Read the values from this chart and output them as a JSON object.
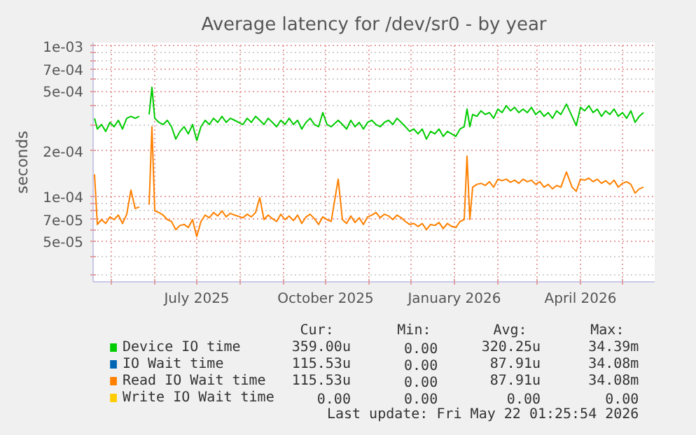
{
  "chart_data": {
    "type": "line",
    "title": "Average latency for /dev/sr0 - by year",
    "ylabel": "seconds",
    "log": "y",
    "grid": true,
    "legend": "bottom",
    "xlim": [
      "2025-04-18",
      "2026-05-24"
    ],
    "xticks": [
      {
        "value": "2025-05-01",
        "label": null
      },
      {
        "value": "2025-06-01",
        "label": null
      },
      {
        "value": "2025-07-01",
        "label": "July 2025"
      },
      {
        "value": "2025-08-01",
        "label": null
      },
      {
        "value": "2025-09-01",
        "label": null
      },
      {
        "value": "2025-10-01",
        "label": "October 2025"
      },
      {
        "value": "2025-11-01",
        "label": null
      },
      {
        "value": "2025-12-01",
        "label": null
      },
      {
        "value": "2026-01-01",
        "label": "January 2026"
      },
      {
        "value": "2026-02-01",
        "label": null
      },
      {
        "value": "2026-03-01",
        "label": null
      },
      {
        "value": "2026-04-01",
        "label": "April 2026"
      },
      {
        "value": "2026-05-01",
        "label": null
      }
    ],
    "ylim": [
      2.7e-05,
      0.00105
    ],
    "yticks": [
      {
        "value": 3e-05,
        "label": null
      },
      {
        "value": 4e-05,
        "label": null
      },
      {
        "value": 5e-05,
        "label": "5e-05"
      },
      {
        "value": 6e-05,
        "label": null
      },
      {
        "value": 7e-05,
        "label": "7e-05"
      },
      {
        "value": 8e-05,
        "label": null
      },
      {
        "value": 9e-05,
        "label": null
      },
      {
        "value": 0.0001,
        "label": "1e-04"
      },
      {
        "value": 0.0002,
        "label": "2e-04"
      },
      {
        "value": 0.0003,
        "label": null
      },
      {
        "value": 0.0004,
        "label": null
      },
      {
        "value": 0.0005,
        "label": "5e-04"
      },
      {
        "value": 0.0006,
        "label": null
      },
      {
        "value": 0.0007,
        "label": "7e-04"
      },
      {
        "value": 0.0008,
        "label": null
      },
      {
        "value": 0.0009,
        "label": null
      },
      {
        "value": 0.001,
        "label": "1e-03"
      }
    ],
    "x": [
      "2025-04-19",
      "2025-04-21",
      "2025-04-24",
      "2025-04-27",
      "2025-04-30",
      "2025-05-03",
      "2025-05-06",
      "2025-05-09",
      "2025-05-12",
      "2025-05-15",
      "2025-05-18",
      "2025-05-21",
      "2025-05-24",
      "2025-05-28",
      "2025-05-30",
      "2025-06-01",
      "2025-06-04",
      "2025-06-07",
      "2025-06-10",
      "2025-06-13",
      "2025-06-16",
      "2025-06-19",
      "2025-06-22",
      "2025-06-25",
      "2025-06-28",
      "2025-07-01",
      "2025-07-04",
      "2025-07-07",
      "2025-07-10",
      "2025-07-13",
      "2025-07-16",
      "2025-07-19",
      "2025-07-22",
      "2025-07-25",
      "2025-07-28",
      "2025-08-03",
      "2025-08-06",
      "2025-08-09",
      "2025-08-12",
      "2025-08-15",
      "2025-08-18",
      "2025-08-21",
      "2025-08-24",
      "2025-08-27",
      "2025-08-30",
      "2025-09-02",
      "2025-09-05",
      "2025-09-08",
      "2025-09-11",
      "2025-09-14",
      "2025-09-17",
      "2025-09-20",
      "2025-09-23",
      "2025-09-26",
      "2025-09-29",
      "2025-10-02",
      "2025-10-05",
      "2025-10-10",
      "2025-10-13",
      "2025-10-16",
      "2025-10-19",
      "2025-10-22",
      "2025-10-25",
      "2025-10-28",
      "2025-10-31",
      "2025-11-03",
      "2025-11-06",
      "2025-11-09",
      "2025-11-12",
      "2025-11-15",
      "2025-11-18",
      "2025-11-21",
      "2025-11-24",
      "2025-11-27",
      "2025-11-30",
      "2025-12-03",
      "2025-12-06",
      "2025-12-09",
      "2025-12-12",
      "2025-12-15",
      "2025-12-18",
      "2025-12-21",
      "2025-12-24",
      "2025-12-27",
      "2025-12-30",
      "2026-01-02",
      "2026-01-05",
      "2026-01-08",
      "2026-01-10",
      "2026-01-12",
      "2026-01-14",
      "2026-01-17",
      "2026-01-20",
      "2026-01-23",
      "2026-01-26",
      "2026-01-29",
      "2026-02-01",
      "2026-02-04",
      "2026-02-07",
      "2026-02-10",
      "2026-02-13",
      "2026-02-16",
      "2026-02-19",
      "2026-02-22",
      "2026-02-25",
      "2026-02-28",
      "2026-03-03",
      "2026-03-06",
      "2026-03-09",
      "2026-03-12",
      "2026-03-15",
      "2026-03-18",
      "2026-03-22",
      "2026-03-26",
      "2026-03-29",
      "2026-04-01",
      "2026-04-04",
      "2026-04-07",
      "2026-04-10",
      "2026-04-13",
      "2026-04-16",
      "2026-04-19",
      "2026-04-22",
      "2026-04-25",
      "2026-04-28",
      "2026-05-01",
      "2026-05-04",
      "2026-05-07",
      "2026-05-10",
      "2026-05-13",
      "2026-05-16"
    ],
    "series": [
      {
        "name": "Device IO time",
        "color": "#00cc00",
        "values": [
          0.00033,
          0.00028,
          0.0003,
          0.00027,
          0.00031,
          0.00029,
          0.00032,
          0.00028,
          0.00033,
          0.00034,
          0.00033,
          0.00034,
          null,
          0.00035,
          0.00053,
          0.00033,
          0.00031,
          0.0003,
          0.00032,
          0.00029,
          0.00024,
          0.00027,
          0.00029,
          0.00026,
          0.0003,
          0.000235,
          0.00029,
          0.00032,
          0.0003,
          0.00033,
          0.00031,
          0.00034,
          0.00031,
          0.00033,
          0.00032,
          0.0003,
          0.00033,
          0.00031,
          0.00034,
          0.00032,
          0.0003,
          0.00033,
          0.00031,
          0.00029,
          0.00032,
          0.0003,
          0.00033,
          0.0003,
          0.00032,
          0.00028,
          0.00031,
          0.00033,
          0.0003,
          0.00029,
          0.00036,
          0.0003,
          0.00029,
          0.00032,
          0.0003,
          0.00028,
          0.00032,
          0.00029,
          0.00031,
          0.00028,
          0.00031,
          0.00032,
          0.0003,
          0.00029,
          0.00031,
          0.00032,
          0.0003,
          0.00033,
          0.00031,
          0.00029,
          0.00027,
          0.00028,
          0.00026,
          0.00028,
          0.00024,
          0.00027,
          0.00026,
          0.00028,
          0.00025,
          0.00027,
          0.00026,
          0.00025,
          0.00028,
          0.00029,
          0.00038,
          0.00029,
          0.00035,
          0.00034,
          0.00037,
          0.00035,
          0.00036,
          0.00033,
          0.00038,
          0.00036,
          0.0004,
          0.00037,
          0.00039,
          0.00036,
          0.00038,
          0.00036,
          0.00039,
          0.00035,
          0.00037,
          0.00034,
          0.00036,
          0.00033,
          0.00037,
          0.00035,
          0.00041,
          0.00034,
          0.000295,
          0.00039,
          0.00037,
          0.0004,
          0.00036,
          0.00038,
          0.00034,
          0.00037,
          0.00035,
          0.00038,
          0.00034,
          0.00036,
          0.00033,
          0.00037,
          0.00031,
          0.00034,
          0.00036
        ]
      },
      {
        "name": "IO Wait time",
        "color": "#0066b3",
        "values": [
          null,
          null,
          null,
          null,
          null,
          null,
          null,
          null,
          null,
          null,
          null,
          null,
          null,
          null,
          null,
          null,
          null,
          null,
          null,
          null,
          null,
          null,
          null,
          null,
          null,
          null,
          null,
          null,
          null,
          null,
          null,
          null,
          null,
          null,
          null,
          null,
          null,
          null,
          null,
          null,
          null,
          null,
          null,
          null,
          null,
          null,
          null,
          null,
          null,
          null,
          null,
          null,
          null,
          null,
          null,
          null,
          null,
          null,
          null,
          null,
          null,
          null,
          null,
          null,
          null,
          null,
          null,
          null,
          null,
          null,
          null,
          null,
          null,
          null,
          null,
          null,
          null,
          null,
          null,
          null,
          null,
          null,
          null,
          null,
          null,
          null,
          null,
          null,
          null,
          null,
          null,
          null,
          null,
          null,
          null,
          null,
          null,
          null,
          null,
          null,
          null,
          null,
          null,
          null,
          null,
          null,
          null,
          null,
          null,
          null,
          null,
          null,
          null,
          null,
          null,
          null,
          null,
          null,
          null,
          null,
          null,
          null,
          null,
          null,
          null,
          null,
          null,
          null,
          null,
          null,
          null
        ]
      },
      {
        "name": "Read IO Wait time",
        "color": "#ff8000",
        "values": [
          0.00014,
          6.5e-05,
          7e-05,
          6.6e-05,
          7.3e-05,
          7e-05,
          7.5e-05,
          6.6e-05,
          7.6e-05,
          0.00011,
          8.3e-05,
          8.5e-05,
          null,
          8.8e-05,
          0.00029,
          8e-05,
          7.8e-05,
          7.5e-05,
          7e-05,
          6.8e-05,
          6e-05,
          6.4e-05,
          6.5e-05,
          6.2e-05,
          7e-05,
          5.4e-05,
          6.8e-05,
          7.5e-05,
          7.2e-05,
          7.8e-05,
          7.4e-05,
          8e-05,
          7.3e-05,
          7.7e-05,
          7.5e-05,
          7.2e-05,
          7.6e-05,
          7.3e-05,
          7.8e-05,
          9.8e-05,
          7e-05,
          7.5e-05,
          7.1e-05,
          6.8e-05,
          7.6e-05,
          7e-05,
          7.4e-05,
          6.9e-05,
          7.5e-05,
          6.6e-05,
          7.3e-05,
          7.6e-05,
          7.1e-05,
          6.5e-05,
          7.3e-05,
          7e-05,
          6.8e-05,
          0.00013,
          7e-05,
          6.6e-05,
          7.4e-05,
          6.7e-05,
          7.2e-05,
          6.5e-05,
          7.3e-05,
          7.5e-05,
          7.8e-05,
          7.2e-05,
          7.6e-05,
          7.4e-05,
          7e-05,
          7.5e-05,
          7.2e-05,
          6.8e-05,
          6.5e-05,
          6.6e-05,
          6.3e-05,
          6.6e-05,
          6e-05,
          6.5e-05,
          6.4e-05,
          6.7e-05,
          6.1e-05,
          6.6e-05,
          6.3e-05,
          6.2e-05,
          6.8e-05,
          7e-05,
          0.000185,
          7e-05,
          0.000115,
          0.00012,
          0.000122,
          0.000118,
          0.000125,
          0.000115,
          0.00013,
          0.000127,
          0.00013,
          0.000124,
          0.000128,
          0.000122,
          0.00013,
          0.000125,
          0.000128,
          0.00012,
          0.000125,
          0.000115,
          0.00012,
          0.000112,
          0.000118,
          0.000115,
          0.000145,
          0.000115,
          0.000108,
          0.00013,
          0.000128,
          0.000132,
          0.000125,
          0.00013,
          0.000122,
          0.000127,
          0.00012,
          0.000128,
          0.000115,
          0.000122,
          0.000125,
          0.00012,
          0.000105,
          0.000112,
          0.000115
        ]
      },
      {
        "name": "Write IO Wait time",
        "color": "#ffcc00",
        "values": [
          null,
          null,
          null,
          null,
          null,
          null,
          null,
          null,
          null,
          null,
          null,
          null,
          null,
          null,
          null,
          null,
          null,
          null,
          null,
          null,
          null,
          null,
          null,
          null,
          null,
          null,
          null,
          null,
          null,
          null,
          null,
          null,
          null,
          null,
          null,
          null,
          null,
          null,
          null,
          null,
          null,
          null,
          null,
          null,
          null,
          null,
          null,
          null,
          null,
          null,
          null,
          null,
          null,
          null,
          null,
          null,
          null,
          null,
          null,
          null,
          null,
          null,
          null,
          null,
          null,
          null,
          null,
          null,
          null,
          null,
          null,
          null,
          null,
          null,
          null,
          null,
          null,
          null,
          null,
          null,
          null,
          null,
          null,
          null,
          null,
          null,
          null,
          null,
          null,
          null,
          null,
          null,
          null,
          null,
          null,
          null,
          null,
          null,
          null,
          null,
          null,
          null,
          null,
          null,
          null,
          null,
          null,
          null,
          null,
          null,
          null,
          null,
          null,
          null,
          null,
          null,
          null,
          null,
          null,
          null,
          null,
          null,
          null,
          null,
          null,
          null,
          null,
          null,
          null,
          null,
          null
        ]
      }
    ],
    "annotations": [
      "Cur:",
      "Min:",
      "Avg:",
      "Max:",
      "359.00u",
      "0.00",
      "320.25u",
      "34.39m",
      "115.53u",
      "0.00",
      "87.91u",
      "34.08m",
      "115.53u",
      "0.00",
      "87.91u",
      "34.08m",
      "0.00",
      "0.00",
      "0.00",
      "0.00",
      "Last update: Fri May 22 01:25:54 2026"
    ]
  }
}
